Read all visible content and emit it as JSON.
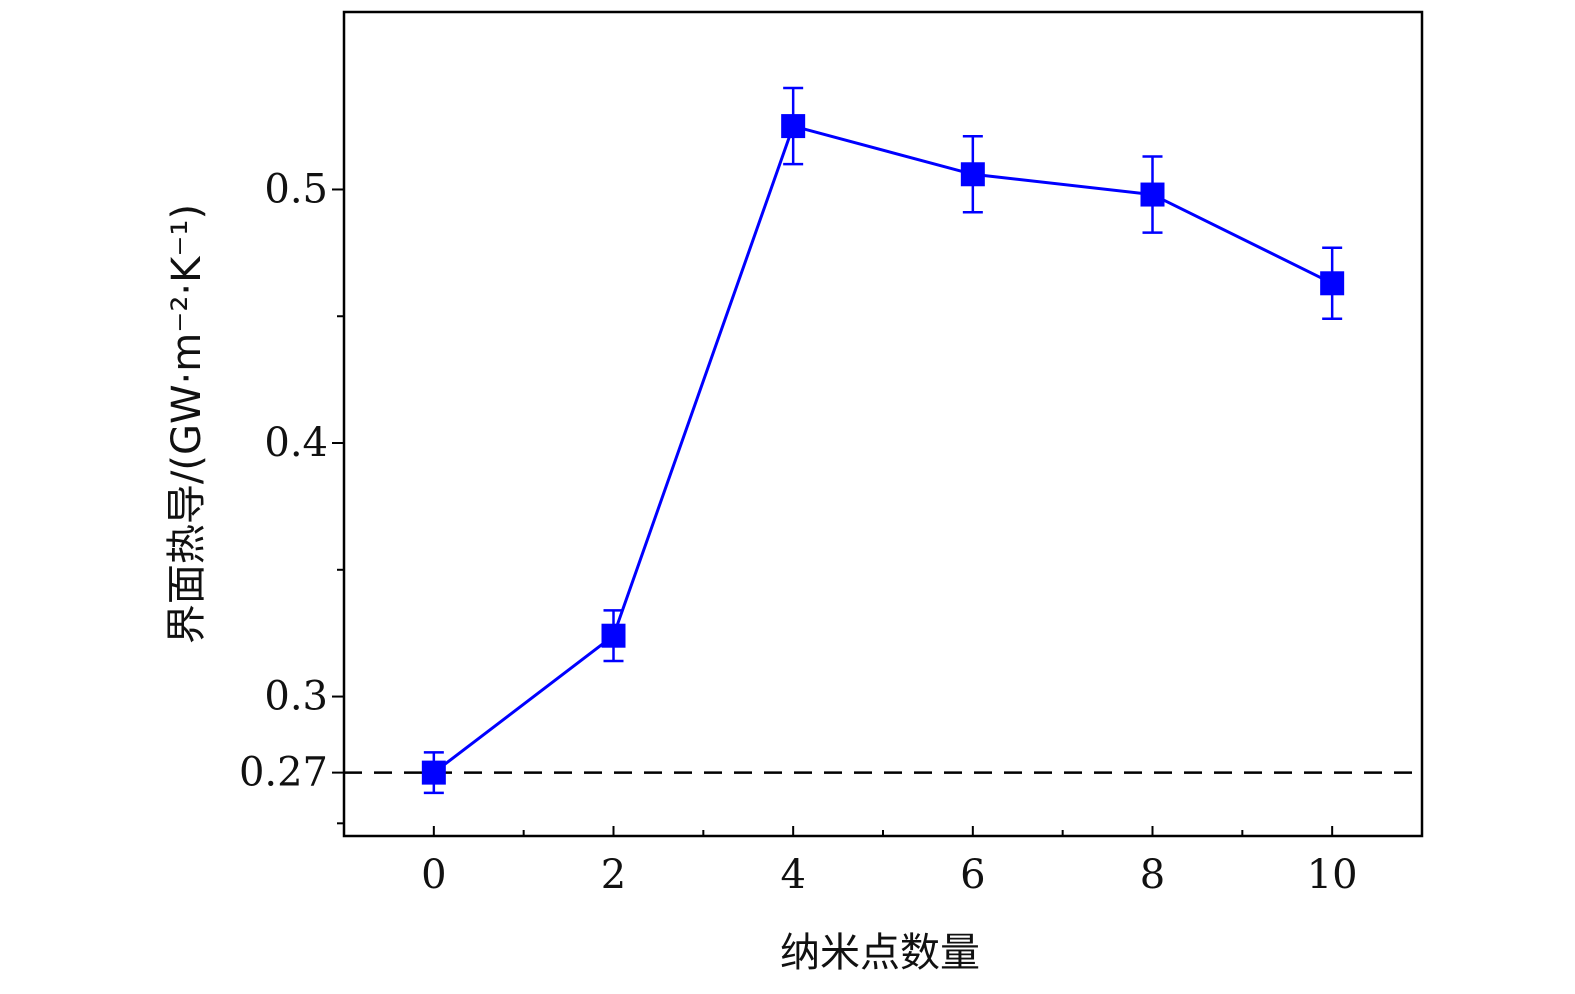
{
  "chart_data": {
    "type": "line",
    "title": "",
    "xlabel": "纳米点数量",
    "ylabel": "界面热导/(GW·m⁻²·K⁻¹)",
    "xlim": [
      -1,
      11
    ],
    "ylim": [
      0.245,
      0.57
    ],
    "x_ticks": [
      "0",
      "2",
      "4",
      "6",
      "8",
      "10"
    ],
    "x_tick_values": [
      0,
      2,
      4,
      6,
      8,
      10
    ],
    "x_minor_ticks": [
      1,
      3,
      5,
      7,
      9
    ],
    "y_ticks": [
      "0.27",
      "0.3",
      "0.4",
      "0.5"
    ],
    "y_tick_values": [
      0.27,
      0.3,
      0.4,
      0.5
    ],
    "y_minor_ticks": [
      0.25,
      0.35,
      0.45
    ],
    "grid": false,
    "legend": "none",
    "reference_line": {
      "y": 0.27,
      "style": "dashed",
      "color": "#000000"
    },
    "series": [
      {
        "color": "#0000ff",
        "marker": "square",
        "x": [
          0,
          2,
          4,
          6,
          8,
          10
        ],
        "y": [
          0.27,
          0.324,
          0.525,
          0.506,
          0.498,
          0.463
        ],
        "err_low": [
          0.262,
          0.314,
          0.51,
          0.491,
          0.483,
          0.449
        ],
        "err_high": [
          0.278,
          0.334,
          0.54,
          0.521,
          0.513,
          0.477
        ]
      }
    ]
  }
}
